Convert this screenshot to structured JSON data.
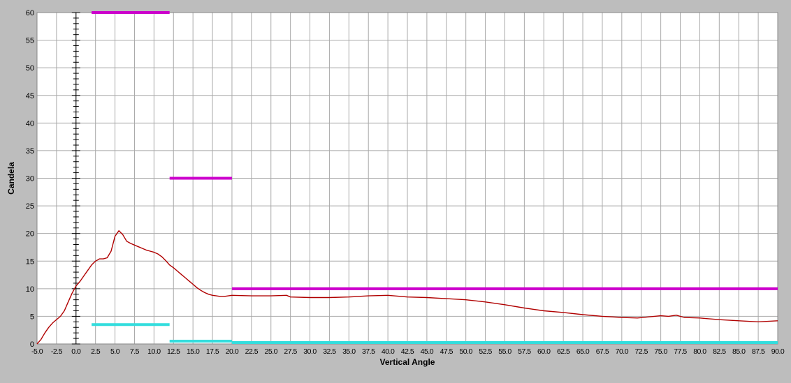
{
  "chart_data": {
    "type": "line",
    "xlabel": "Vertical Angle",
    "ylabel": "Candela",
    "xlim": [
      -5,
      90
    ],
    "ylim": [
      0,
      60
    ],
    "x_ticks": [
      "-5.0",
      "-2.5",
      "0.0",
      "2.5",
      "5.0",
      "7.5",
      "10.0",
      "12.5",
      "15.0",
      "17.5",
      "20.0",
      "22.5",
      "25.0",
      "27.5",
      "30.0",
      "32.5",
      "35.0",
      "37.5",
      "40.0",
      "42.5",
      "45.0",
      "47.5",
      "50.0",
      "52.5",
      "55.0",
      "57.5",
      "60.0",
      "62.5",
      "65.0",
      "67.5",
      "70.0",
      "72.5",
      "75.0",
      "77.5",
      "80.0",
      "82.5",
      "85.0",
      "87.5",
      "90.0"
    ],
    "y_ticks": [
      "0",
      "5",
      "10",
      "15",
      "20",
      "25",
      "30",
      "35",
      "40",
      "45",
      "50",
      "55",
      "60"
    ],
    "grid": true,
    "colors": {
      "background": "#bdbdbd",
      "plot_bg": "#ffffff",
      "grid": "#a9a9a9",
      "curve": "#b00000",
      "max_limit": "#cc00cc",
      "min_limit": "#33dddd",
      "zero_axis": "#000000"
    },
    "series": [
      {
        "kind": "curve",
        "points": [
          [
            -5.0,
            0.0
          ],
          [
            -4.5,
            0.8
          ],
          [
            -4.0,
            2.0
          ],
          [
            -3.5,
            3.0
          ],
          [
            -3.0,
            3.8
          ],
          [
            -2.0,
            5.0
          ],
          [
            -1.5,
            6.0
          ],
          [
            -1.0,
            7.6
          ],
          [
            -0.5,
            9.2
          ],
          [
            0.0,
            10.5
          ],
          [
            0.5,
            11.3
          ],
          [
            1.0,
            12.3
          ],
          [
            1.5,
            13.3
          ],
          [
            2.0,
            14.3
          ],
          [
            2.5,
            15.0
          ],
          [
            3.0,
            15.4
          ],
          [
            3.5,
            15.4
          ],
          [
            4.0,
            15.6
          ],
          [
            4.5,
            16.8
          ],
          [
            5.0,
            19.5
          ],
          [
            5.5,
            20.5
          ],
          [
            6.0,
            19.8
          ],
          [
            6.5,
            18.6
          ],
          [
            7.0,
            18.2
          ],
          [
            7.5,
            17.9
          ],
          [
            8.0,
            17.6
          ],
          [
            8.5,
            17.3
          ],
          [
            9.0,
            17.0
          ],
          [
            9.5,
            16.8
          ],
          [
            10.0,
            16.6
          ],
          [
            10.5,
            16.3
          ],
          [
            11.0,
            15.8
          ],
          [
            11.5,
            15.1
          ],
          [
            12.0,
            14.3
          ],
          [
            12.5,
            13.8
          ],
          [
            13.0,
            13.2
          ],
          [
            13.5,
            12.6
          ],
          [
            14.0,
            12.0
          ],
          [
            14.5,
            11.4
          ],
          [
            15.0,
            10.8
          ],
          [
            15.5,
            10.2
          ],
          [
            16.0,
            9.7
          ],
          [
            16.5,
            9.3
          ],
          [
            17.0,
            9.0
          ],
          [
            17.5,
            8.8
          ],
          [
            18.0,
            8.7
          ],
          [
            18.5,
            8.6
          ],
          [
            19.0,
            8.6
          ],
          [
            20.0,
            8.8
          ],
          [
            22.5,
            8.7
          ],
          [
            25.0,
            8.7
          ],
          [
            27.0,
            8.8
          ],
          [
            27.5,
            8.5
          ],
          [
            30.0,
            8.4
          ],
          [
            32.5,
            8.4
          ],
          [
            35.0,
            8.5
          ],
          [
            37.5,
            8.7
          ],
          [
            40.0,
            8.8
          ],
          [
            42.5,
            8.5
          ],
          [
            45.0,
            8.4
          ],
          [
            47.5,
            8.2
          ],
          [
            50.0,
            8.0
          ],
          [
            52.5,
            7.6
          ],
          [
            55.0,
            7.1
          ],
          [
            57.5,
            6.5
          ],
          [
            60.0,
            6.0
          ],
          [
            62.5,
            5.7
          ],
          [
            65.0,
            5.3
          ],
          [
            67.5,
            5.0
          ],
          [
            70.0,
            4.8
          ],
          [
            72.0,
            4.7
          ],
          [
            73.5,
            4.9
          ],
          [
            75.0,
            5.1
          ],
          [
            76.0,
            5.0
          ],
          [
            77.0,
            5.2
          ],
          [
            78.0,
            4.8
          ],
          [
            80.0,
            4.7
          ],
          [
            82.5,
            4.4
          ],
          [
            85.0,
            4.2
          ],
          [
            87.5,
            4.0
          ],
          [
            90.0,
            4.2
          ]
        ]
      },
      {
        "kind": "max_limits",
        "segments": [
          {
            "x0": 2.0,
            "x1": 12.0,
            "y": 60.0
          },
          {
            "x0": 12.0,
            "x1": 20.0,
            "y": 30.0
          },
          {
            "x0": 20.0,
            "x1": 90.0,
            "y": 10.0
          }
        ]
      },
      {
        "kind": "min_limits",
        "segments": [
          {
            "x0": 2.0,
            "x1": 12.0,
            "y": 3.5
          },
          {
            "x0": 12.0,
            "x1": 20.0,
            "y": 0.5
          },
          {
            "x0": 20.0,
            "x1": 90.0,
            "y": 0.25
          }
        ]
      }
    ]
  }
}
